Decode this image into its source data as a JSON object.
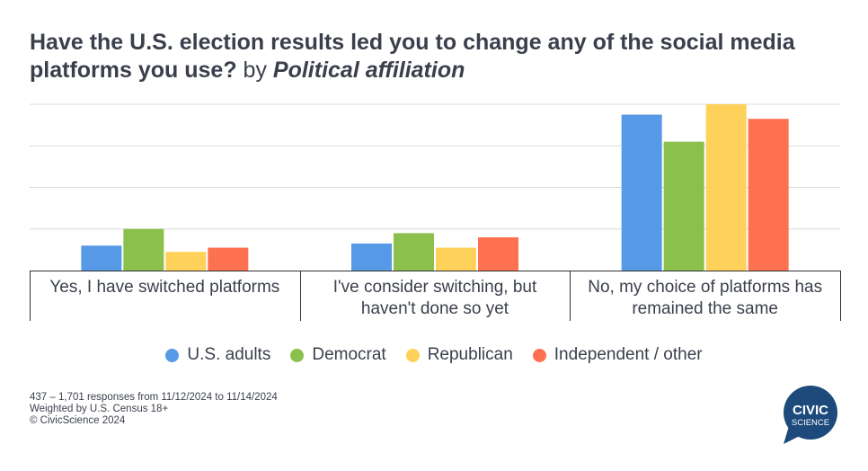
{
  "title": {
    "main": "Have the U.S. election results led you to change any of the social media platforms you use?",
    "by": "by",
    "affiliation": "Political affiliation"
  },
  "chart_data": {
    "type": "bar",
    "categories": [
      "Yes, I have switched platforms",
      "I've consider switching, but haven't done so yet",
      "No, my choice of platforms has remained the same"
    ],
    "category_lines": [
      [
        "Yes, I have switched platforms"
      ],
      [
        "I've consider switching, but",
        "haven't done so yet"
      ],
      [
        "No, my choice of platforms has",
        "remained the same"
      ]
    ],
    "series": [
      {
        "name": "U.S. adults",
        "color": "#5699e6",
        "values": [
          12,
          13,
          75
        ]
      },
      {
        "name": "Democrat",
        "color": "#8bc04c",
        "values": [
          20,
          18,
          62
        ]
      },
      {
        "name": "Republican",
        "color": "#fdd15a",
        "values": [
          9,
          11,
          80
        ]
      },
      {
        "name": "Independent / other",
        "color": "#fe7150",
        "values": [
          11,
          16,
          73
        ]
      }
    ],
    "ylim": [
      0,
      80
    ],
    "grid": true,
    "legend_position": "bottom"
  },
  "footnote": {
    "line1": "437 – 1,701 responses from 11/12/2024 to 11/14/2024",
    "line2": "Weighted by U.S. Census 18+",
    "line3": "© CivicScience 2024"
  },
  "logo": {
    "line1": "CIVIC",
    "line2": "SCIENCE",
    "color": "#1d4a7a"
  }
}
